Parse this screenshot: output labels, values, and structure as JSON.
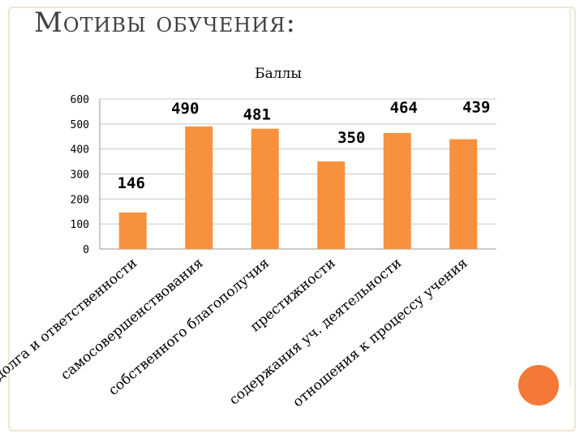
{
  "slide": {
    "title": "Мотивы обучения:"
  },
  "chart_data": {
    "type": "bar",
    "title": "Баллы",
    "categories": [
      "долга и ответственности",
      "самосовершенствования",
      "собственного благополучия",
      "престижности",
      "содержания уч. деятельности",
      "отношения к процессу учения"
    ],
    "values": [
      146,
      490,
      481,
      350,
      464,
      439
    ],
    "data_labels": [
      "146",
      "490",
      "481",
      "350",
      "464",
      "439"
    ],
    "ylim": [
      0,
      600
    ],
    "yticks": [
      0,
      100,
      200,
      300,
      400,
      500,
      600
    ],
    "bar_color": "#f7913d",
    "grid": true,
    "legend": "none"
  }
}
